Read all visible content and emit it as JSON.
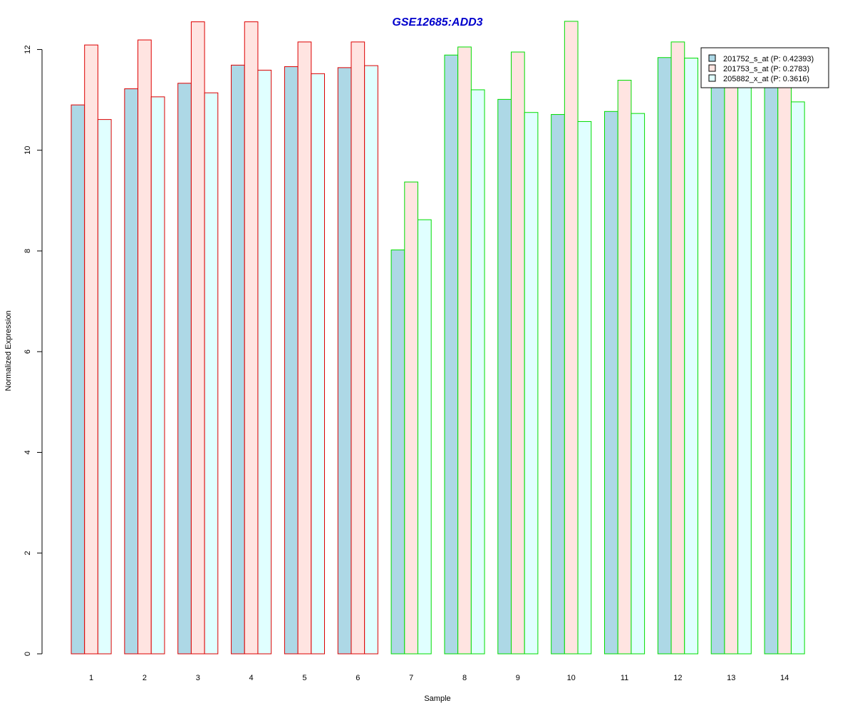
{
  "chart_data": {
    "type": "bar",
    "title": "GSE12685:ADD3",
    "xlabel": "Sample",
    "ylabel": "Normalized Expression",
    "categories": [
      "1",
      "2",
      "3",
      "4",
      "5",
      "6",
      "7",
      "8",
      "9",
      "10",
      "11",
      "12",
      "13",
      "14"
    ],
    "ylim": [
      0,
      12.7
    ],
    "yticks": [
      0,
      2,
      4,
      6,
      8,
      10,
      12
    ],
    "series": [
      {
        "name": "201752_s_at (P: 0.42393)",
        "fill": "#add8e6",
        "values": [
          10.9,
          11.22,
          11.33,
          11.69,
          11.66,
          11.64,
          8.02,
          11.89,
          11.01,
          10.71,
          10.77,
          11.84,
          11.45,
          11.25
        ]
      },
      {
        "name": "201753_s_at (P: 0.2783)",
        "fill": "#ffe4e1",
        "values": [
          12.09,
          12.19,
          12.55,
          12.55,
          12.15,
          12.15,
          9.37,
          12.05,
          11.95,
          12.56,
          11.39,
          12.15,
          11.76,
          11.3
        ]
      },
      {
        "name": "205882_x_at (P: 0.3616)",
        "fill": "#e0ffff",
        "values": [
          10.61,
          11.06,
          11.14,
          11.59,
          11.52,
          11.68,
          8.62,
          11.2,
          10.75,
          10.57,
          10.73,
          11.83,
          11.31,
          10.96
        ]
      }
    ],
    "group_border_colors": [
      "#dd0000",
      "#dd0000",
      "#dd0000",
      "#dd0000",
      "#dd0000",
      "#dd0000",
      "#00dd00",
      "#00dd00",
      "#00dd00",
      "#00dd00",
      "#00dd00",
      "#00dd00",
      "#00dd00",
      "#00dd00"
    ],
    "title_color": "#0000cc",
    "grid": false,
    "legend_position": "top-right"
  }
}
